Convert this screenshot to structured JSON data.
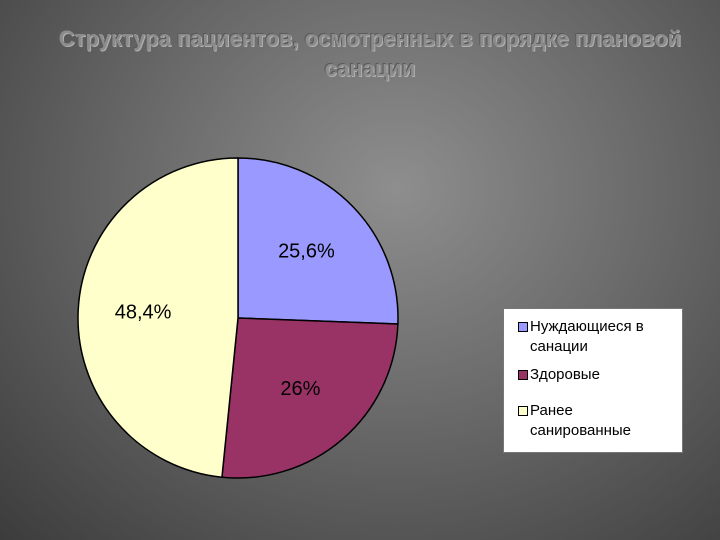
{
  "chart_data": {
    "type": "pie",
    "title": "Структура пациентов, осмотренных в порядке плановой санации",
    "categories": [
      "Нуждающиеся в санации",
      "Здоровые",
      "Ранее санированные"
    ],
    "values": [
      25.6,
      26,
      48.4
    ],
    "value_labels": [
      "25,6%",
      "26%",
      "48,4%"
    ],
    "colors": [
      "#9999ff",
      "#993366",
      "#ffffcc"
    ]
  }
}
